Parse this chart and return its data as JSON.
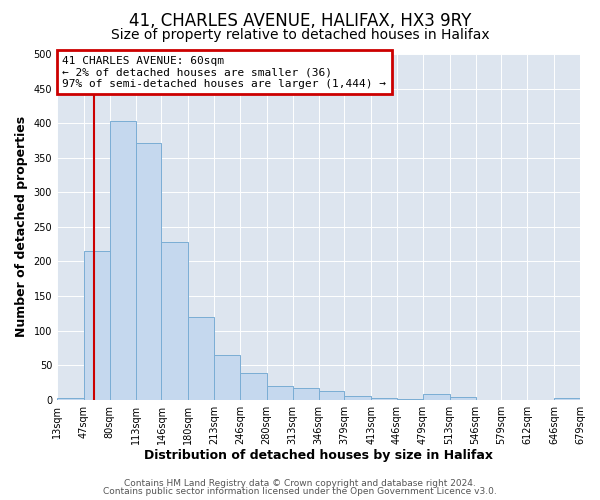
{
  "title": "41, CHARLES AVENUE, HALIFAX, HX3 9RY",
  "subtitle": "Size of property relative to detached houses in Halifax",
  "xlabel": "Distribution of detached houses by size in Halifax",
  "ylabel": "Number of detached properties",
  "bar_color": "#c5d8ee",
  "bar_edge_color": "#7aadd4",
  "vline_color": "#cc0000",
  "vline_x": 60,
  "annotation_text": "41 CHARLES AVENUE: 60sqm\n← 2% of detached houses are smaller (36)\n97% of semi-detached houses are larger (1,444) →",
  "annotation_box_color": "#ffffff",
  "annotation_box_edge_color": "#cc0000",
  "bin_edges": [
    13,
    47,
    80,
    113,
    146,
    180,
    213,
    246,
    280,
    313,
    346,
    379,
    413,
    446,
    479,
    513,
    546,
    579,
    612,
    646,
    679
  ],
  "bin_labels": [
    "13sqm",
    "47sqm",
    "80sqm",
    "113sqm",
    "146sqm",
    "180sqm",
    "213sqm",
    "246sqm",
    "280sqm",
    "313sqm",
    "346sqm",
    "379sqm",
    "413sqm",
    "446sqm",
    "479sqm",
    "513sqm",
    "546sqm",
    "579sqm",
    "612sqm",
    "646sqm",
    "679sqm"
  ],
  "bar_heights": [
    3,
    215,
    403,
    372,
    228,
    120,
    65,
    39,
    20,
    17,
    12,
    5,
    2,
    1,
    8,
    4,
    0,
    0,
    0,
    2
  ],
  "ylim": [
    0,
    500
  ],
  "yticks": [
    0,
    50,
    100,
    150,
    200,
    250,
    300,
    350,
    400,
    450,
    500
  ],
  "background_color": "#ffffff",
  "plot_background_color": "#dde5ef",
  "grid_color": "#ffffff",
  "footer_line1": "Contains HM Land Registry data © Crown copyright and database right 2024.",
  "footer_line2": "Contains public sector information licensed under the Open Government Licence v3.0.",
  "title_fontsize": 12,
  "subtitle_fontsize": 10,
  "axis_label_fontsize": 9,
  "tick_fontsize": 7,
  "footer_fontsize": 6.5
}
